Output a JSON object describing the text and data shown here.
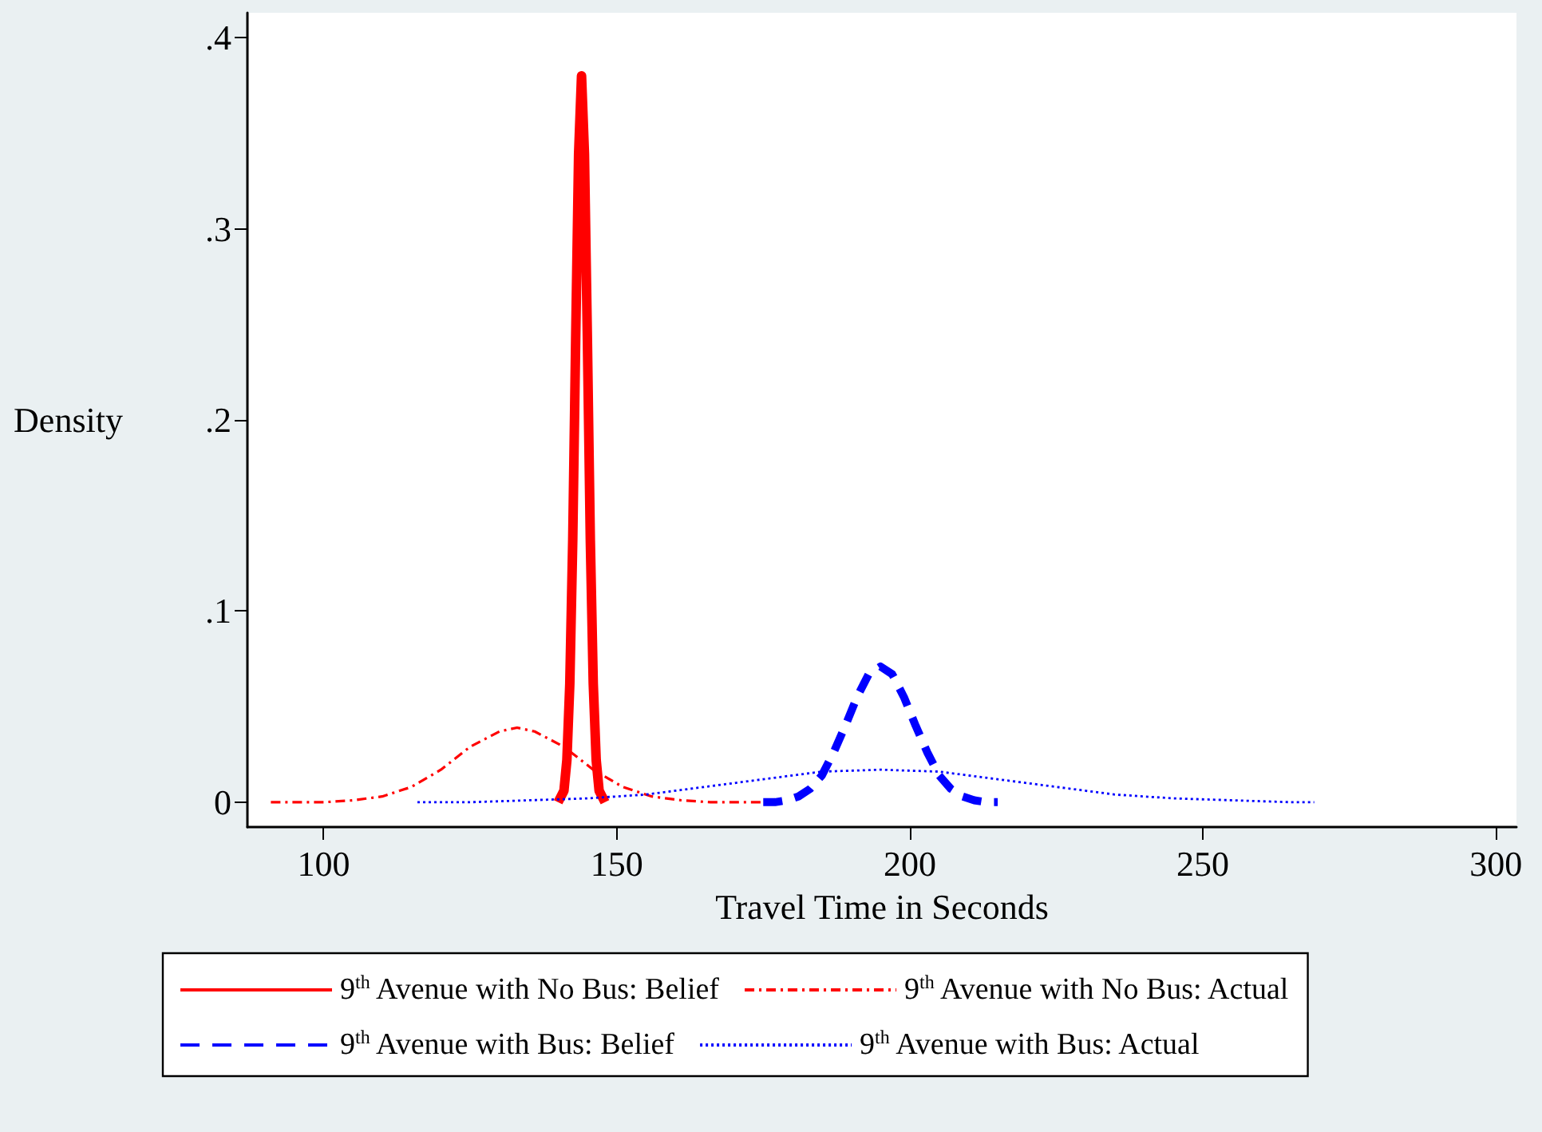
{
  "chart_data": {
    "type": "line",
    "xlabel": "Travel Time in Seconds",
    "ylabel": "Density",
    "xlim": [
      87,
      303.5
    ],
    "ylim": [
      -0.013,
      0.413
    ],
    "xticks": [
      100,
      150,
      200,
      250,
      300
    ],
    "yticks": [
      0,
      {
        "value": 0.1,
        "label": ".1"
      },
      {
        "value": 0.2,
        "label": ".2"
      },
      {
        "value": 0.3,
        "label": ".3"
      },
      {
        "value": 0.4,
        "label": ".4"
      }
    ],
    "grid": false,
    "legend": "bottom",
    "marker": "none",
    "series": [
      {
        "name": "9$^{th}$ Avenue with No Bus: Belief",
        "color": "#ff0000",
        "line_style": "solid",
        "x": [
          140,
          141,
          141.5,
          142,
          142.5,
          143,
          143.5,
          144,
          144.5,
          145,
          145.5,
          146,
          146.5,
          147,
          148
        ],
        "values": [
          0,
          0.006,
          0.022,
          0.062,
          0.137,
          0.242,
          0.339,
          0.38,
          0.339,
          0.242,
          0.137,
          0.062,
          0.022,
          0.006,
          0
        ]
      },
      {
        "name": "9$^{th}$ Avenue with No Bus: Actual",
        "color": "#ff0000",
        "line_style": "dashdot",
        "x": [
          91,
          95,
          100,
          105,
          110,
          115,
          120,
          125,
          130,
          133,
          136,
          141,
          146,
          151,
          156,
          161,
          166,
          171,
          175
        ],
        "values": [
          0,
          0,
          0,
          0.001,
          0.003,
          0.008,
          0.017,
          0.029,
          0.037,
          0.039,
          0.037,
          0.029,
          0.017,
          0.008,
          0.003,
          0.001,
          0,
          0,
          0
        ]
      },
      {
        "name": "9$^{th}$ Avenue with Bus: Belief",
        "color": "#0000ff",
        "line_style": "dashed",
        "x": [
          175,
          177,
          179,
          181,
          183,
          185,
          187,
          189,
          191,
          193,
          195,
          197,
          199,
          201,
          203,
          205,
          207,
          209,
          211,
          213,
          215
        ],
        "values": [
          0,
          0,
          0.001,
          0.003,
          0.007,
          0.014,
          0.026,
          0.04,
          0.055,
          0.067,
          0.071,
          0.067,
          0.055,
          0.04,
          0.026,
          0.014,
          0.007,
          0.003,
          0.001,
          0,
          0
        ]
      },
      {
        "name": "9$^{th}$ Avenue with Bus: Actual",
        "color": "#0000ff",
        "line_style": "dotted",
        "x": [
          116,
          125,
          135,
          145,
          155,
          165,
          175,
          185,
          195,
          205,
          215,
          225,
          235,
          245,
          255,
          265,
          269
        ],
        "values": [
          0,
          0,
          0.001,
          0.002,
          0.004,
          0.008,
          0.012,
          0.016,
          0.017,
          0.016,
          0.012,
          0.008,
          0.004,
          0.002,
          0.001,
          0,
          0
        ]
      }
    ]
  }
}
